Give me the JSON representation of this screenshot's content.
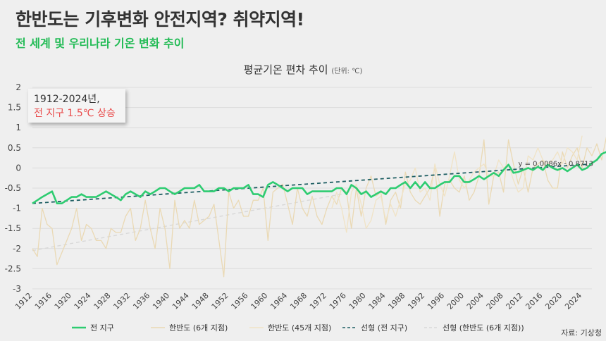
{
  "header": {
    "title": "한반도는 기후변화 안전지역? 취약지역!",
    "subtitle": "전 세계 및 우리나라 기온 변화 추이"
  },
  "callout": {
    "line1": "1912-2024년,",
    "line2": "전 지구 1.5℃ 상승"
  },
  "source": "자료: 기상청",
  "chart_data": {
    "type": "line",
    "title": "평균기온 편차 추이",
    "unit_note": "(단위: ℃)",
    "xlim": [
      1912,
      2026
    ],
    "ylim": [
      -3,
      2
    ],
    "yticks": [
      -3,
      -2.5,
      -2,
      -1.5,
      -1,
      -0.5,
      0,
      0.5,
      1,
      1.5,
      2
    ],
    "xticks": [
      1912,
      1916,
      1920,
      1924,
      1928,
      1932,
      1936,
      1940,
      1944,
      1948,
      1952,
      1956,
      1960,
      1964,
      1968,
      1972,
      1976,
      1980,
      1984,
      1988,
      1992,
      1996,
      2000,
      2004,
      2008,
      2012,
      2016,
      2020,
      2024
    ],
    "grid": true,
    "legend_position": "bottom",
    "trendline_label": "y = 0.0086x - 0.8713",
    "series": [
      {
        "name": "전 지구",
        "kind": "line",
        "color": "#2ecc71",
        "x_start": 1912,
        "values": [
          -0.88,
          -0.8,
          -0.72,
          -0.65,
          -0.58,
          -0.88,
          -0.88,
          -0.8,
          -0.72,
          -0.72,
          -0.65,
          -0.72,
          -0.72,
          -0.72,
          -0.65,
          -0.58,
          -0.65,
          -0.72,
          -0.8,
          -0.65,
          -0.58,
          -0.65,
          -0.72,
          -0.58,
          -0.65,
          -0.58,
          -0.5,
          -0.5,
          -0.58,
          -0.65,
          -0.58,
          -0.5,
          -0.5,
          -0.5,
          -0.42,
          -0.58,
          -0.58,
          -0.58,
          -0.5,
          -0.5,
          -0.58,
          -0.5,
          -0.5,
          -0.5,
          -0.42,
          -0.65,
          -0.65,
          -0.72,
          -0.42,
          -0.35,
          -0.42,
          -0.5,
          -0.58,
          -0.5,
          -0.5,
          -0.5,
          -0.65,
          -0.58,
          -0.58,
          -0.58,
          -0.58,
          -0.58,
          -0.5,
          -0.5,
          -0.65,
          -0.42,
          -0.5,
          -0.65,
          -0.58,
          -0.72,
          -0.65,
          -0.58,
          -0.65,
          -0.5,
          -0.5,
          -0.42,
          -0.35,
          -0.5,
          -0.35,
          -0.5,
          -0.35,
          -0.5,
          -0.5,
          -0.42,
          -0.35,
          -0.35,
          -0.2,
          -0.2,
          -0.35,
          -0.35,
          -0.28,
          -0.2,
          -0.28,
          -0.2,
          -0.12,
          -0.2,
          -0.05,
          0.08,
          -0.12,
          -0.1,
          -0.05,
          0.0,
          -0.05,
          0.03,
          -0.05,
          0.08,
          0.0,
          -0.05,
          0.0,
          -0.08,
          0.0,
          0.08,
          -0.05,
          0.0,
          0.12,
          0.2,
          0.35,
          0.4,
          0.3,
          0.2,
          0.3,
          0.3,
          0.2,
          0.2,
          0.5,
          0.6
        ]
      },
      {
        "name": "한반도 (6개 지점)",
        "kind": "line",
        "color": "#ead9b4",
        "x_start": 1912,
        "values": [
          -2.0,
          -2.2,
          -1.0,
          -1.4,
          -1.5,
          -2.4,
          -2.1,
          -1.8,
          -1.5,
          -1.0,
          -1.8,
          -1.4,
          -1.5,
          -1.8,
          -1.8,
          -2.0,
          -1.5,
          -1.6,
          -1.6,
          -1.2,
          -1.0,
          -1.8,
          -1.5,
          -0.8,
          -1.5,
          -2.0,
          -1.0,
          -1.5,
          -2.5,
          -0.8,
          -1.5,
          -1.3,
          -1.5,
          -0.8,
          -1.4,
          -1.3,
          -1.2,
          -0.9,
          -1.8,
          -2.7,
          -0.6,
          -1.0,
          -0.8,
          -1.2,
          -1.2,
          -0.8,
          -0.8,
          -0.5,
          -1.8,
          -0.6,
          -0.5,
          -0.4,
          -0.9,
          -1.4,
          -0.5,
          -1.0,
          -1.2,
          -0.7,
          -1.2,
          -1.4,
          -1.0,
          -0.7,
          -0.9,
          -0.5,
          -0.6,
          -1.5,
          -0.5,
          -1.2,
          -0.5,
          -0.2,
          -0.7,
          -0.6,
          -1.4,
          -0.8,
          -0.6,
          -1.0,
          -0.1,
          -0.6,
          -0.8,
          -0.9,
          -0.7,
          -0.5,
          0.0,
          -1.2,
          -0.4,
          -0.3,
          -0.5,
          -0.6,
          -0.2,
          -0.8,
          -0.6,
          -0.2,
          0.7,
          -0.9,
          -0.2,
          -0.1,
          -0.6,
          0.7,
          0.1,
          -0.4,
          0.0,
          -0.6,
          0.0,
          0.1,
          0.2,
          -0.3,
          -0.5,
          -0.5,
          0.4,
          0.0,
          0.3,
          0.5,
          0.0,
          0.5,
          0.3,
          0.6,
          0.2,
          0.8,
          0.4,
          0.4,
          0.1,
          1.1,
          1.9
        ]
      },
      {
        "name": "한반도 (45개 지점)",
        "kind": "line",
        "color": "#f0e3c6",
        "x_start": 1973,
        "values": [
          -1.0,
          -0.6,
          -1.0,
          -1.6,
          -0.6,
          -0.4,
          -0.9,
          -1.5,
          -1.3,
          -0.8,
          -0.7,
          -1.3,
          -0.9,
          -1.2,
          -0.8,
          -0.4,
          -0.3,
          0.0,
          -0.6,
          -0.5,
          -0.8,
          0.1,
          -0.4,
          -0.7,
          -0.2,
          0.4,
          -0.3,
          -0.5,
          -0.3,
          -0.1,
          0.0,
          0.1,
          -0.2,
          -0.2,
          0.2,
          0.0,
          0.1,
          -0.3,
          -0.6,
          -0.5,
          0.3,
          0.2,
          0.5,
          0.2,
          0.1,
          0.2,
          0.4,
          0.1,
          0.5,
          0.4,
          0.2,
          0.8
        ]
      },
      {
        "name": "선형 (전 지구)",
        "kind": "trend",
        "color": "#1f5f63",
        "x": [
          1912,
          2026
        ],
        "values": [
          -0.88,
          0.1
        ]
      },
      {
        "name": "선형 (한반도 (6개 지점))",
        "kind": "trend",
        "color": "#d8d8d8",
        "x": [
          1912,
          1975
        ],
        "values": [
          -2.05,
          -0.65
        ]
      }
    ]
  }
}
